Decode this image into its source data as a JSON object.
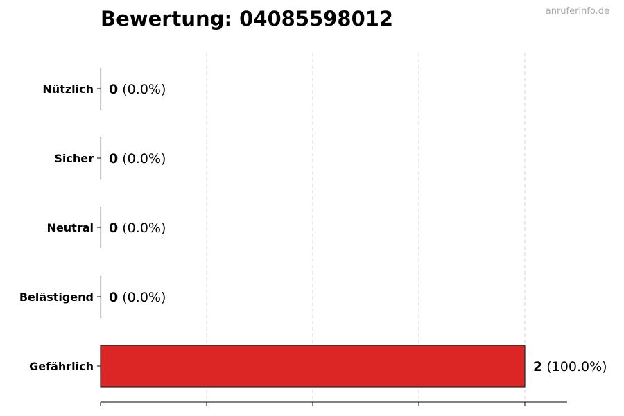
{
  "chart_data": {
    "type": "bar",
    "orientation": "horizontal",
    "title": "Bewertung: 04085598012",
    "watermark": "anruferinfo.de",
    "categories": [
      "Nützlich",
      "Sicher",
      "Neutral",
      "Belästigend",
      "Gefährlich"
    ],
    "values": [
      0,
      0,
      0,
      0,
      2
    ],
    "value_labels": [
      "0",
      "0",
      "0",
      "0",
      "2"
    ],
    "percent_labels": [
      "(0.0%)",
      "(0.0%)",
      "(0.0%)",
      "(0.0%)",
      "(100.0%)"
    ],
    "colors": [
      "#888888",
      "#888888",
      "#888888",
      "#888888",
      "#dc2626"
    ],
    "xlim": [
      0,
      2.2
    ],
    "xticks": [
      0,
      0.5,
      1,
      1.5,
      2
    ],
    "xtick_labels_shown": false,
    "grid": "vertical dashed",
    "xlabel": "",
    "ylabel": ""
  }
}
